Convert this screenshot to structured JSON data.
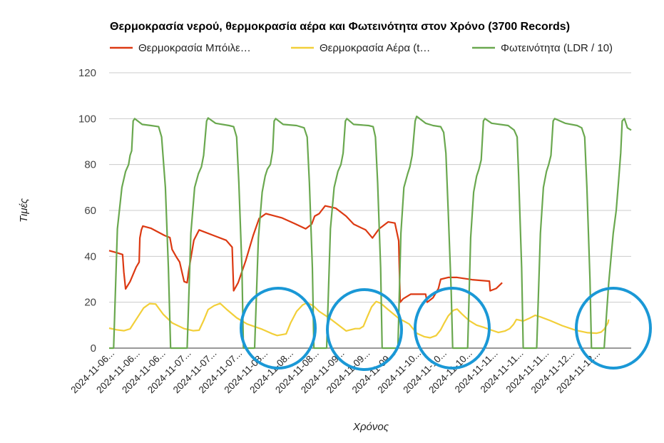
{
  "chart_data": {
    "type": "line",
    "title": "Θερμοκρασία νερού, θερμοκρασία αέρα και Φωτεινότητα στον Χρόνο (3700 Records)",
    "xlabel": "Χρόνος",
    "ylabel": "Τιμές",
    "ylim": [
      0,
      120
    ],
    "yticks": [
      0,
      20,
      40,
      60,
      80,
      100,
      120
    ],
    "grid": true,
    "legend_position": "top",
    "x_tick_labels": [
      "2024-11-06...",
      "2024-11-06...",
      "2024-11-06...",
      "2024-11-07...",
      "2024-11-07...",
      "2024-11-07...",
      "2024-11-08...",
      "2024-11-08...",
      "2024-11-08...",
      "2024-11-09...",
      "2024-11-09...",
      "2024-11-09...",
      "2024-11-10...",
      "2024-11-10...",
      "2024-11-10...",
      "2024-11-11...",
      "2024-11-11...",
      "2024-11-11...",
      "2024-11-12...",
      "2024-11-12..."
    ],
    "series": [
      {
        "name": "Θερμοκρασία Μπόιλε…",
        "color": "#dc3912",
        "points": [
          [
            0,
            42.5
          ],
          [
            0.5,
            41.6
          ],
          [
            0.9,
            40.8
          ],
          [
            0.98,
            33.2
          ],
          [
            1.1,
            25.8
          ],
          [
            1.4,
            29
          ],
          [
            1.8,
            35.3
          ],
          [
            2.0,
            37.5
          ],
          [
            2.05,
            48
          ],
          [
            2.15,
            51.5
          ],
          [
            2.25,
            53.2
          ],
          [
            2.8,
            52.2
          ],
          [
            3.7,
            49.1
          ],
          [
            4.05,
            48.2
          ],
          [
            4.2,
            43
          ],
          [
            4.5,
            39.5
          ],
          [
            4.7,
            37.5
          ],
          [
            5.0,
            29
          ],
          [
            5.2,
            28.5
          ],
          [
            5.3,
            33.5
          ],
          [
            5.65,
            47
          ],
          [
            6.0,
            51.5
          ],
          [
            7.0,
            49
          ],
          [
            7.8,
            47
          ],
          [
            8.2,
            44
          ],
          [
            8.3,
            25
          ],
          [
            8.6,
            28.5
          ],
          [
            9.1,
            38
          ],
          [
            9.6,
            49
          ],
          [
            10.0,
            56.5
          ],
          [
            10.45,
            58.6
          ],
          [
            11.5,
            56.8
          ],
          [
            12.4,
            54.2
          ],
          [
            13.1,
            52
          ],
          [
            13.5,
            54
          ],
          [
            13.7,
            57.5
          ],
          [
            14.0,
            58.6
          ],
          [
            14.4,
            62
          ],
          [
            15.1,
            61
          ],
          [
            15.8,
            57.5
          ],
          [
            16.3,
            54
          ],
          [
            17.1,
            51.5
          ],
          [
            17.55,
            48
          ],
          [
            18.0,
            52
          ],
          [
            18.6,
            55
          ],
          [
            19.05,
            54.5
          ],
          [
            19.3,
            46.8
          ],
          [
            19.4,
            20
          ],
          [
            19.6,
            21.5
          ],
          [
            20.1,
            23.5
          ],
          [
            21.1,
            23.5
          ],
          [
            21.2,
            20
          ],
          [
            21.6,
            22
          ],
          [
            21.95,
            26
          ],
          [
            22.1,
            30
          ],
          [
            22.6,
            30.8
          ],
          [
            23.2,
            30.8
          ],
          [
            24.2,
            29.8
          ],
          [
            25.35,
            29.2
          ],
          [
            25.4,
            25
          ],
          [
            25.8,
            26
          ],
          [
            26.2,
            28.5
          ]
        ]
      },
      {
        "name": "Θερμοκρασία Αέρα (t…",
        "color": "#f2cf39",
        "points": [
          [
            0,
            8.7
          ],
          [
            0.5,
            8.0
          ],
          [
            1.0,
            7.6
          ],
          [
            1.4,
            8.4
          ],
          [
            1.8,
            12.5
          ],
          [
            2.3,
            17.5
          ],
          [
            2.7,
            19.4
          ],
          [
            3.1,
            19.2
          ],
          [
            3.6,
            14.8
          ],
          [
            4.2,
            11
          ],
          [
            5.0,
            8.5
          ],
          [
            5.6,
            7.6
          ],
          [
            6.0,
            7.8
          ],
          [
            6.3,
            12
          ],
          [
            6.6,
            16.8
          ],
          [
            7.0,
            18.5
          ],
          [
            7.4,
            19.5
          ],
          [
            7.9,
            16.5
          ],
          [
            8.5,
            13.2
          ],
          [
            9.2,
            10.5
          ],
          [
            10.2,
            8.2
          ],
          [
            10.9,
            6.2
          ],
          [
            11.2,
            5.5
          ],
          [
            11.8,
            6.2
          ],
          [
            12.1,
            11
          ],
          [
            12.5,
            16
          ],
          [
            12.9,
            18.8
          ],
          [
            13.2,
            19.8
          ],
          [
            13.6,
            18.5
          ],
          [
            14.0,
            16
          ],
          [
            14.7,
            13
          ],
          [
            15.1,
            11
          ],
          [
            15.8,
            7.5
          ],
          [
            16.4,
            8.5
          ],
          [
            16.7,
            8.5
          ],
          [
            16.95,
            9.5
          ],
          [
            17.2,
            13.5
          ],
          [
            17.5,
            18
          ],
          [
            17.8,
            20.3
          ],
          [
            18.1,
            19.6
          ],
          [
            18.6,
            16.8
          ],
          [
            19.3,
            13
          ],
          [
            20.0,
            10.5
          ],
          [
            20.5,
            6.5
          ],
          [
            21.0,
            5
          ],
          [
            21.4,
            4.5
          ],
          [
            21.8,
            5.5
          ],
          [
            22.1,
            8
          ],
          [
            22.3,
            10.5
          ],
          [
            22.6,
            14
          ],
          [
            22.95,
            16.5
          ],
          [
            23.2,
            17
          ],
          [
            23.5,
            15
          ],
          [
            24.0,
            12
          ],
          [
            24.5,
            10
          ],
          [
            25.0,
            9
          ],
          [
            25.5,
            7.8
          ],
          [
            25.95,
            6.8
          ],
          [
            26.4,
            7.5
          ],
          [
            26.7,
            8.5
          ],
          [
            26.95,
            10.3
          ],
          [
            27.15,
            12.5
          ],
          [
            27.6,
            11.8
          ],
          [
            27.95,
            12.8
          ],
          [
            28.4,
            14.3
          ],
          [
            28.8,
            13.5
          ],
          [
            29.4,
            12
          ],
          [
            30.2,
            9.8
          ],
          [
            31.1,
            7.8
          ],
          [
            31.9,
            6.7
          ],
          [
            32.5,
            6.5
          ],
          [
            32.8,
            7
          ],
          [
            33.0,
            8.2
          ],
          [
            33.25,
            11
          ],
          [
            33.3,
            12.5
          ]
        ]
      },
      {
        "name": "Φωτεινότητα (LDR / 10)",
        "color": "#6aa84f",
        "points": [
          [
            0,
            0
          ],
          [
            0.3,
            0
          ],
          [
            0.55,
            52
          ],
          [
            0.85,
            70
          ],
          [
            1.1,
            77
          ],
          [
            1.3,
            80
          ],
          [
            1.4,
            84
          ],
          [
            1.5,
            86
          ],
          [
            1.6,
            99
          ],
          [
            1.7,
            100
          ],
          [
            2.2,
            97.5
          ],
          [
            2.8,
            97
          ],
          [
            3.3,
            96.5
          ],
          [
            3.5,
            92
          ],
          [
            3.75,
            70
          ],
          [
            3.95,
            35
          ],
          [
            4.1,
            0
          ],
          [
            5.2,
            0
          ],
          [
            5.45,
            50
          ],
          [
            5.7,
            70
          ],
          [
            5.95,
            76
          ],
          [
            6.15,
            79
          ],
          [
            6.3,
            84
          ],
          [
            6.5,
            99
          ],
          [
            6.6,
            100.3
          ],
          [
            7.1,
            98
          ],
          [
            8.0,
            97
          ],
          [
            8.3,
            96.5
          ],
          [
            8.5,
            92
          ],
          [
            8.65,
            72
          ],
          [
            8.85,
            35
          ],
          [
            8.95,
            0
          ],
          [
            9.7,
            0
          ],
          [
            9.95,
            48
          ],
          [
            10.2,
            68
          ],
          [
            10.4,
            75
          ],
          [
            10.55,
            78
          ],
          [
            10.75,
            80
          ],
          [
            10.9,
            86
          ],
          [
            11.0,
            99
          ],
          [
            11.1,
            100
          ],
          [
            11.6,
            97.5
          ],
          [
            12.5,
            97
          ],
          [
            13.0,
            96
          ],
          [
            13.2,
            92
          ],
          [
            13.35,
            72
          ],
          [
            13.55,
            35
          ],
          [
            13.65,
            0
          ],
          [
            14.5,
            0
          ],
          [
            14.75,
            52
          ],
          [
            15.0,
            70
          ],
          [
            15.25,
            77
          ],
          [
            15.45,
            80
          ],
          [
            15.6,
            85
          ],
          [
            15.75,
            99
          ],
          [
            15.85,
            100
          ],
          [
            16.3,
            97.5
          ],
          [
            17.3,
            97
          ],
          [
            17.6,
            96.5
          ],
          [
            17.75,
            92
          ],
          [
            17.9,
            72
          ],
          [
            18.1,
            35
          ],
          [
            18.2,
            0
          ],
          [
            19.25,
            0
          ],
          [
            19.45,
            50
          ],
          [
            19.65,
            70
          ],
          [
            19.9,
            76
          ],
          [
            20.05,
            79
          ],
          [
            20.2,
            84
          ],
          [
            20.4,
            99
          ],
          [
            20.5,
            101
          ],
          [
            21.1,
            98
          ],
          [
            21.6,
            97
          ],
          [
            22.1,
            96.5
          ],
          [
            22.3,
            94
          ],
          [
            22.45,
            85
          ],
          [
            22.6,
            60
          ],
          [
            22.8,
            25
          ],
          [
            22.9,
            0
          ],
          [
            23.9,
            0
          ],
          [
            24.1,
            48
          ],
          [
            24.3,
            68
          ],
          [
            24.5,
            75
          ],
          [
            24.65,
            78
          ],
          [
            24.8,
            82
          ],
          [
            24.95,
            99
          ],
          [
            25.05,
            100
          ],
          [
            25.5,
            98
          ],
          [
            26.6,
            97
          ],
          [
            27.0,
            95
          ],
          [
            27.2,
            92
          ],
          [
            27.3,
            75
          ],
          [
            27.5,
            35
          ],
          [
            27.6,
            0
          ],
          [
            28.5,
            0
          ],
          [
            28.75,
            50
          ],
          [
            28.95,
            70
          ],
          [
            29.15,
            77
          ],
          [
            29.3,
            80
          ],
          [
            29.45,
            84
          ],
          [
            29.6,
            99
          ],
          [
            29.7,
            100
          ],
          [
            30.4,
            98
          ],
          [
            31.2,
            97
          ],
          [
            31.5,
            96
          ],
          [
            31.7,
            92
          ],
          [
            31.85,
            70
          ],
          [
            32.05,
            30
          ],
          [
            32.15,
            0
          ],
          [
            33.0,
            0
          ],
          [
            33.3,
            28
          ],
          [
            33.6,
            50
          ],
          [
            33.8,
            60
          ],
          [
            33.95,
            72
          ],
          [
            34.1,
            85
          ],
          [
            34.2,
            99
          ],
          [
            34.35,
            100
          ],
          [
            34.55,
            96
          ],
          [
            34.8,
            95
          ]
        ]
      }
    ],
    "annotations": [
      {
        "type": "circle",
        "color": "#1a98d6",
        "description": "highlight"
      }
    ]
  }
}
